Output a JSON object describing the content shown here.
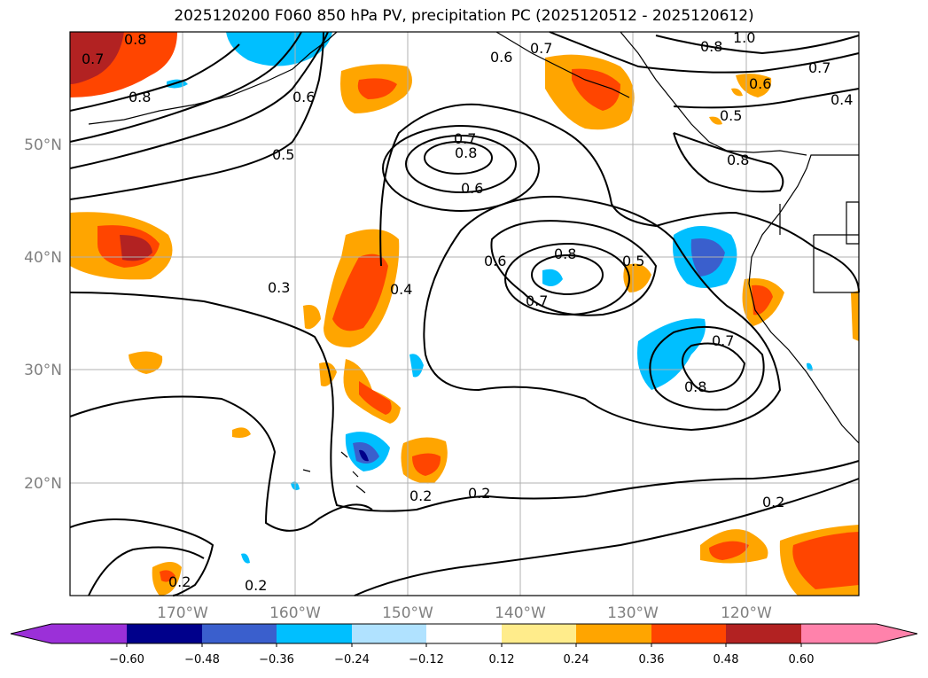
{
  "title": "2025120200 F060 850 hPa PV, precipitation PC (2025120512 - 2025120612)",
  "lat_labels": [
    "50°N",
    "40°N",
    "30°N",
    "20°N"
  ],
  "lon_labels": [
    "170°W",
    "160°W",
    "150°W",
    "140°W",
    "130°W",
    "120°W"
  ],
  "colorbar": {
    "ticks": [
      "−0.60",
      "−0.48",
      "−0.36",
      "−0.24",
      "−0.12",
      "0.12",
      "0.24",
      "0.36",
      "0.48",
      "0.60"
    ],
    "colors": [
      "#9b30d8",
      "#00008b",
      "#3a5fcd",
      "#00bfff",
      "#b0e2ff",
      "#ffffff",
      "#ffec8b",
      "#ffa500",
      "#ff4500",
      "#b22222",
      "#ff82ab"
    ]
  },
  "contour_labels": [
    "0.7",
    "0.8",
    "0.8",
    "0.6",
    "0.7",
    "1.0",
    "0.7",
    "0.6",
    "0.4",
    "0.5",
    "0.6",
    "0.8",
    "0.5",
    "0.7",
    "0.8",
    "0.6",
    "0.8",
    "0.6",
    "0.8",
    "0.7",
    "0.5",
    "0.3",
    "0.4",
    "0.7",
    "0.8",
    "0.2",
    "0.2",
    "0.2",
    "0.2",
    "0.2"
  ]
}
